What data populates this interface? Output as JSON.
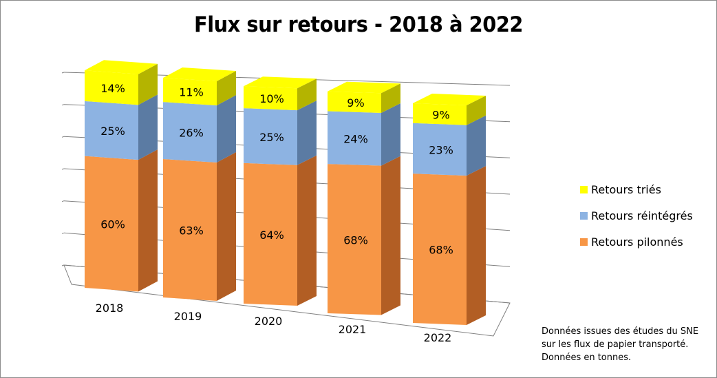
{
  "chart_data": {
    "type": "bar",
    "stacked": true,
    "title": "Flux sur retours - 2018 à 2022",
    "categories": [
      "2018",
      "2019",
      "2020",
      "2021",
      "2022"
    ],
    "series": [
      {
        "name": "Retours pilonnés",
        "values": [
          60,
          63,
          64,
          68,
          68
        ],
        "color": "#f79646",
        "side_color": "#b25e24"
      },
      {
        "name": "Retours réintégrés",
        "values": [
          25,
          26,
          25,
          24,
          23
        ],
        "color": "#8db3e2",
        "side_color": "#5b7ba3"
      },
      {
        "name": "Retours triés",
        "values": [
          14,
          11,
          10,
          9,
          9
        ],
        "color": "#ffff00",
        "side_color": "#b4b400"
      }
    ],
    "data_label_suffix": "%",
    "gridlines": true,
    "legend_position": "right",
    "three_d": true
  },
  "legend": [
    {
      "label": "Retours triés",
      "color": "#ffff00"
    },
    {
      "label": "Retours réintégrés",
      "color": "#8db3e2"
    },
    {
      "label": "Retours pilonnés",
      "color": "#f79646"
    }
  ],
  "note": {
    "line1": "Données issues des études du SNE",
    "line2": "sur les flux de papier transporté.",
    "line3": "Données en tonnes."
  }
}
